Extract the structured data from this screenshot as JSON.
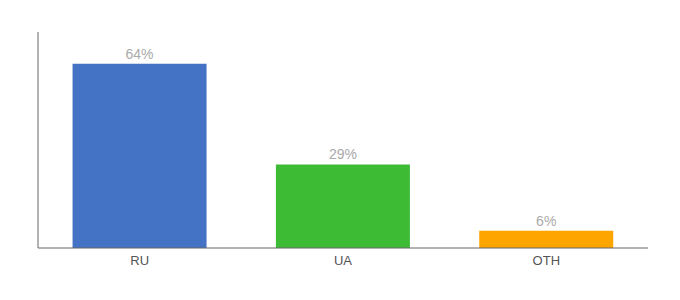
{
  "chart_data": {
    "type": "bar",
    "categories": [
      "RU",
      "UA",
      "OTH"
    ],
    "values": [
      64,
      29,
      6
    ],
    "value_labels": [
      "64%",
      "29%",
      "6%"
    ],
    "colors": [
      "#4472c4",
      "#3dbb35",
      "#ffa500"
    ],
    "ylim": [
      0,
      75
    ],
    "tick_labels": "x",
    "data_labels": true
  }
}
